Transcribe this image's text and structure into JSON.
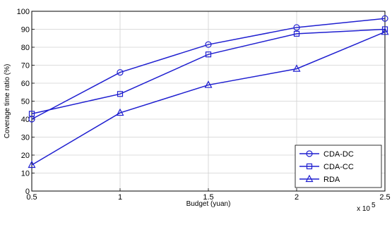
{
  "chart_data": {
    "type": "line",
    "xlabel": "Budget (yuan)",
    "ylabel": "Coverage time ratio (%)",
    "x_multiplier_label": "x 10",
    "x_multiplier_exponent": "5",
    "xlim": [
      0.5,
      2.5
    ],
    "ylim": [
      0,
      100
    ],
    "x_ticks": [
      0.5,
      1,
      1.5,
      2,
      2.5
    ],
    "x_tick_labels": [
      "0.5",
      "1",
      "1.5",
      "2",
      "2.5"
    ],
    "y_ticks": [
      0,
      10,
      20,
      30,
      40,
      50,
      60,
      70,
      80,
      90,
      100
    ],
    "y_tick_labels": [
      "0",
      "10",
      "20",
      "30",
      "40",
      "50",
      "60",
      "70",
      "80",
      "90",
      "100"
    ],
    "grid": true,
    "legend_position": "bottom-right",
    "line_color": "#1f1fd0",
    "x": [
      0.5,
      1,
      1.5,
      2,
      2.5
    ],
    "series": [
      {
        "name": "CDA-DC",
        "marker": "circle",
        "values": [
          40,
          66,
          81.5,
          91,
          96
        ]
      },
      {
        "name": "CDA-CC",
        "marker": "square",
        "values": [
          43,
          54,
          76,
          87.5,
          90
        ]
      },
      {
        "name": "RDA",
        "marker": "triangle",
        "values": [
          14.5,
          43.5,
          59,
          68,
          88.5
        ]
      }
    ]
  }
}
